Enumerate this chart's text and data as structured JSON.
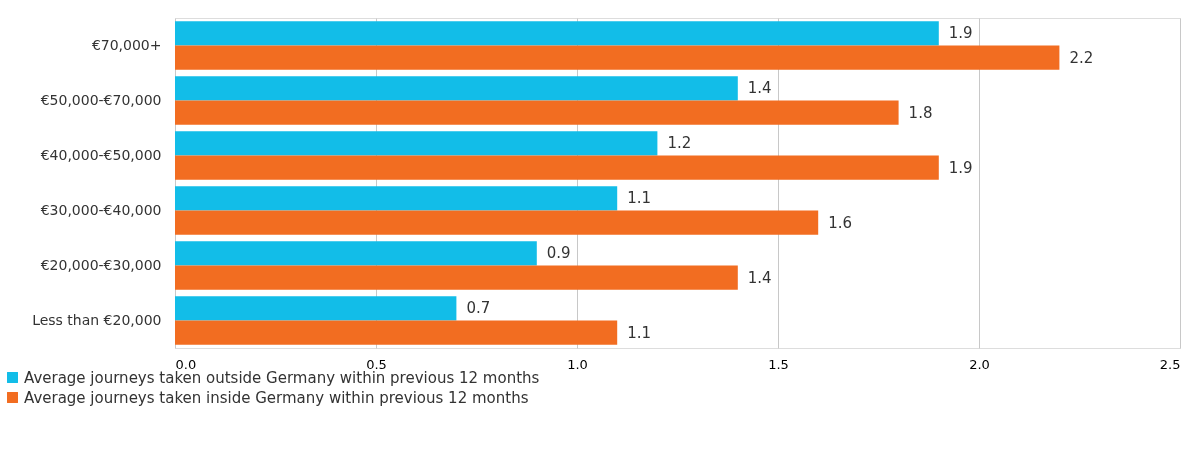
{
  "chart_data": {
    "type": "bar",
    "orientation": "horizontal",
    "categories": [
      "€70,000+",
      "€50,000-€70,000",
      "€40,000-€50,000",
      "€30,000-€40,000",
      "€20,000-€30,000",
      "Less than €20,000"
    ],
    "series": [
      {
        "name": "Average journeys taken outside Germany within previous 12 months",
        "color": "#12bde8",
        "values": [
          1.9,
          1.4,
          1.2,
          1.1,
          0.9,
          0.7
        ]
      },
      {
        "name": "Average journeys taken inside Germany within previous 12 months",
        "color": "#f26d21",
        "values": [
          2.2,
          1.8,
          1.9,
          1.6,
          1.4,
          1.1
        ]
      }
    ],
    "xlim": [
      0,
      2.5
    ],
    "xticks": [
      {
        "value": 0,
        "label": "0.0"
      },
      0.5,
      {
        "value": 1,
        "label": "1.0"
      },
      1.5,
      {
        "value": 2,
        "label": "2.0"
      },
      2.5
    ],
    "data_labels": true,
    "grid": "x",
    "legend": "bottom left"
  }
}
